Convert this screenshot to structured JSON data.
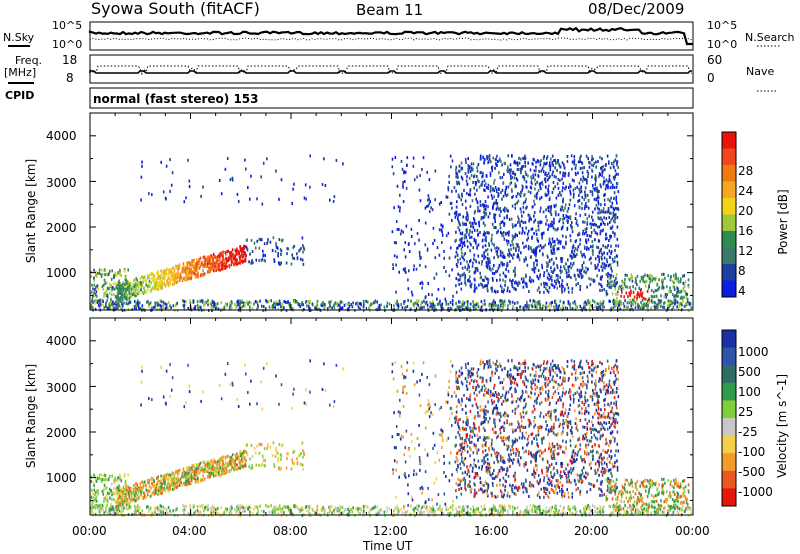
{
  "header": {
    "title": "Syowa South (fitACF)",
    "beam": "Beam 11",
    "date": "08/Dec/2009"
  },
  "top_panel": {
    "left_label": "N.Sky",
    "right_label": "N.Search",
    "left_ticks": [
      "10^5",
      "10^0"
    ],
    "right_ticks": [
      "10^5",
      "10^0"
    ],
    "freq_label_1": "Freq.",
    "freq_label_2": "[MHz]",
    "freq_ticks": [
      "18",
      "8"
    ],
    "nave_ticks": [
      "60",
      "0"
    ],
    "nave_label": "Nave",
    "cpid_label": "CPID",
    "mode": "normal (fast stereo) 153"
  },
  "axes": {
    "ylabel": "Slant Range [km]",
    "xlabel": "Time UT",
    "yticks": [
      "4000",
      "3000",
      "2000",
      "1000"
    ],
    "xticks": [
      "00:00",
      "04:00",
      "08:00",
      "12:00",
      "16:00",
      "20:00",
      "00:00"
    ]
  },
  "colors": {
    "power": [
      "#0d1ee0",
      "#1f3fa0",
      "#3a7a6a",
      "#2e8b4e",
      "#9fc93a",
      "#f2d31a",
      "#f5a623",
      "#ef7a0f",
      "#f0471e",
      "#e8140c"
    ],
    "velocity": [
      "#1a2fa6",
      "#3055a8",
      "#2e6e66",
      "#2e9a4a",
      "#7fcf3e",
      "#c8c8c8",
      "#f3cf4b",
      "#f29a2a",
      "#ea5a1e",
      "#e5160e"
    ]
  },
  "chart_data": [
    {
      "type": "heatmap",
      "title": "Power",
      "xlabel": "Time UT",
      "ylabel": "Slant Range [km]",
      "xlim": [
        0,
        24
      ],
      "ylim": [
        180,
        4500
      ],
      "colorbar": {
        "label": "Power [dB]",
        "ticks": [
          "28",
          "24",
          "20",
          "16",
          "12",
          "8",
          "4"
        ],
        "range": [
          0,
          30
        ]
      },
      "features": [
        {
          "t": [
            1.0,
            6.2
          ],
          "range_km": [
            700,
            1650
          ],
          "description": "strong E/F scatter arc, peak >28 dB near 05:00-06:00"
        },
        {
          "t": [
            0.0,
            1.5
          ],
          "range_km": [
            300,
            1100
          ],
          "description": "mixed scatter"
        },
        {
          "t": [
            14.5,
            21.0
          ],
          "range_km": [
            600,
            3600
          ],
          "description": "widespread weak ionospheric scatter"
        },
        {
          "t": [
            20.5,
            23.8
          ],
          "range_km": [
            300,
            1000
          ],
          "description": "scatter with ~28 dB patch near 21:30"
        }
      ]
    },
    {
      "type": "heatmap",
      "title": "Velocity",
      "xlabel": "Time UT",
      "ylabel": "Slant Range [km]",
      "xlim": [
        0,
        24
      ],
      "ylim": [
        180,
        4500
      ],
      "colorbar": {
        "label": "Velocity [m s^-1]",
        "ticks": [
          "1000",
          "500",
          "100",
          "25",
          "-25",
          "-100",
          "-500",
          "-1000"
        ],
        "range": [
          -1000,
          1000
        ]
      },
      "features": [
        {
          "t": [
            1.0,
            6.2
          ],
          "range_km": [
            400,
            1650
          ],
          "description": "mostly -100 to -500 m/s (orange)"
        },
        {
          "t": [
            15.5,
            20.5
          ],
          "range_km": [
            600,
            3600
          ],
          "description": "mixed, predominantly positive (blue)"
        },
        {
          "t": [
            20.5,
            23.8
          ],
          "range_km": [
            300,
            900
          ],
          "description": "orange/red and green mixture"
        }
      ]
    }
  ]
}
